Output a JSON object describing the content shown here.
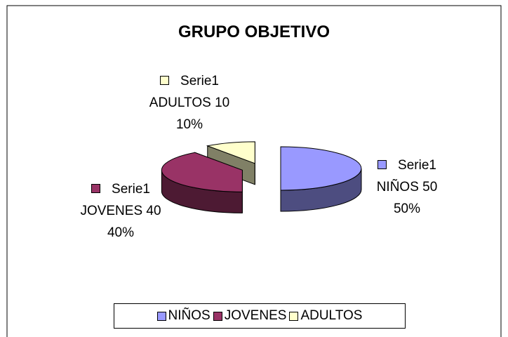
{
  "chart_data": {
    "type": "pie3d",
    "title": "GRUPO OBJETIVO",
    "series_name": "Serie1",
    "categories": [
      "NIÑOS",
      "JOVENES",
      "ADULTOS"
    ],
    "values": [
      50,
      40,
      10
    ],
    "value_labels": [
      "50%",
      "40%",
      "10%"
    ],
    "colors": [
      "#9999ff",
      "#993366",
      "#ffffcc"
    ],
    "side_colors": [
      "#4d4d80",
      "#4d1a33",
      "#808066"
    ],
    "legend": "bottom"
  }
}
